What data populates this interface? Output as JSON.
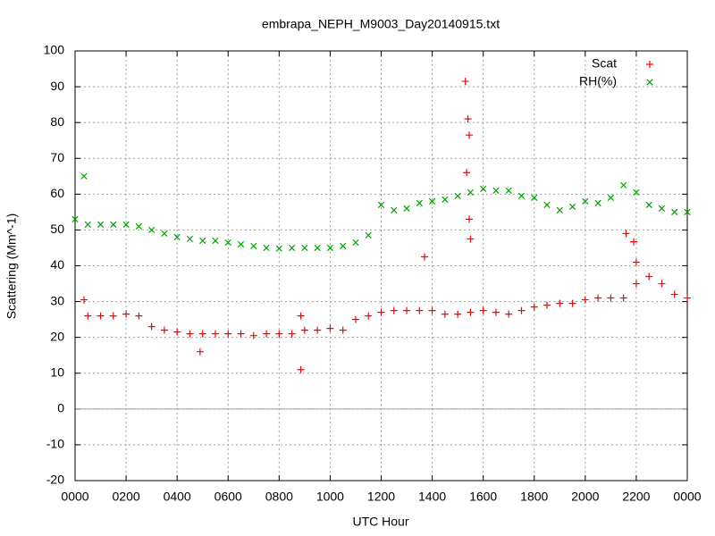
{
  "chart_data": {
    "type": "scatter",
    "title": "embrapa_NEPH_M9003_Day20140915.txt",
    "x_label": "UTC Hour",
    "y_label": "Scattering (Mm^-1)",
    "xlim": [
      0,
      24
    ],
    "ylim": [
      -20,
      100
    ],
    "xticks": [
      {
        "value": 0,
        "label": "0000"
      },
      {
        "value": 2,
        "label": "0200"
      },
      {
        "value": 4,
        "label": "0400"
      },
      {
        "value": 6,
        "label": "0600"
      },
      {
        "value": 8,
        "label": "0800"
      },
      {
        "value": 10,
        "label": "1000"
      },
      {
        "value": 12,
        "label": "1200"
      },
      {
        "value": 14,
        "label": "1400"
      },
      {
        "value": 16,
        "label": "1600"
      },
      {
        "value": 18,
        "label": "1800"
      },
      {
        "value": 20,
        "label": "2000"
      },
      {
        "value": 22,
        "label": "2200"
      },
      {
        "value": 24,
        "label": "0000"
      }
    ],
    "yticks": [
      -20,
      -10,
      0,
      10,
      20,
      30,
      40,
      50,
      60,
      70,
      80,
      90,
      100
    ],
    "grid": true,
    "legend": "top-right",
    "series": [
      {
        "name": "Scat",
        "color": "#ff0000",
        "marker": "plus",
        "x": [
          0.35,
          0.5,
          1,
          1.5,
          2,
          2.5,
          3,
          3.5,
          4,
          4.5,
          4.9,
          5,
          5.5,
          6,
          6.5,
          7,
          7.5,
          8,
          8.5,
          8.85,
          8.85,
          9,
          9.5,
          10,
          10.5,
          11,
          11.5,
          12,
          12.5,
          13,
          13.5,
          13.7,
          14,
          14.5,
          15,
          15.3,
          15.35,
          15.4,
          15.45,
          15.45,
          15.5,
          15.5,
          16,
          16.5,
          17,
          17.5,
          18,
          18.5,
          19,
          19.5,
          20,
          20.5,
          21,
          21.5,
          21.6,
          21.9,
          22,
          22,
          22.5,
          23,
          23.5,
          24
        ],
        "values": [
          30.5,
          26,
          26,
          26,
          26.5,
          26,
          23,
          22,
          21.5,
          21,
          16,
          21,
          21,
          21,
          21,
          20.5,
          21,
          21,
          21,
          11,
          26,
          22,
          22,
          22.5,
          22,
          25,
          26,
          27,
          27.5,
          27.5,
          27.5,
          42.5,
          27.5,
          26.5,
          26.5,
          91.5,
          66,
          81,
          76.5,
          53,
          47.5,
          27,
          27.5,
          27,
          26.5,
          27.5,
          28.5,
          29,
          29.5,
          29.5,
          30.5,
          31,
          31,
          31,
          49,
          46.7,
          41,
          35,
          37,
          35,
          32,
          31
        ]
      },
      {
        "name": "RH(%)",
        "color": "#00a000",
        "marker": "cross",
        "x": [
          0,
          0.35,
          0.5,
          1,
          1.5,
          2,
          2.5,
          3,
          3.5,
          4,
          4.5,
          5,
          5.5,
          6,
          6.5,
          7,
          7.5,
          8,
          8.5,
          9,
          9.5,
          10,
          10.5,
          11,
          11.5,
          12,
          12.5,
          13,
          13.5,
          14,
          14.5,
          15,
          15.5,
          16,
          16.5,
          17,
          17.5,
          18,
          18.5,
          19,
          19.5,
          20,
          20.5,
          21,
          21.5,
          22,
          22.5,
          23,
          23.5,
          24
        ],
        "values": [
          53,
          65,
          51.5,
          51.5,
          51.5,
          51.5,
          51,
          50,
          49,
          48,
          47.5,
          47,
          47,
          46.5,
          46,
          45.5,
          45,
          44.8,
          45,
          45,
          45,
          45,
          45.5,
          46.5,
          48.5,
          57,
          55.5,
          56,
          57.5,
          58,
          58.5,
          59.5,
          60.5,
          61.5,
          61,
          61,
          59.5,
          59,
          57,
          55.5,
          56.5,
          58,
          57.5,
          59,
          62.5,
          60.5,
          57,
          56,
          55,
          55
        ]
      }
    ]
  }
}
